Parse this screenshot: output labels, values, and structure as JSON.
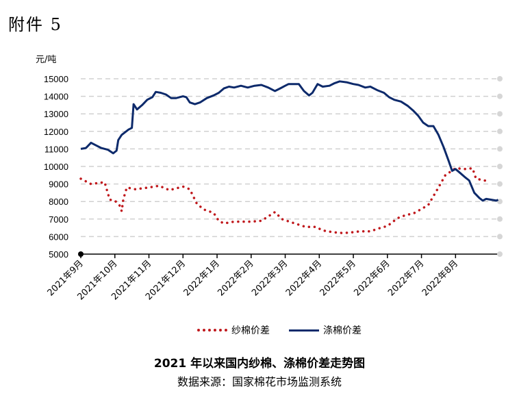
{
  "header": {
    "attachment": "附件 5"
  },
  "chart_data": {
    "type": "line",
    "unit_label": "元/吨",
    "ylim": [
      5000,
      15000
    ],
    "yticks": [
      "5000",
      "6000",
      "7000",
      "8000",
      "9000",
      "10000",
      "11000",
      "12000",
      "13000",
      "14000",
      "15000"
    ],
    "categories": [
      "2021年9月",
      "2021年10月",
      "2021年11月",
      "2021年12月",
      "2022年1月",
      "2022年2月",
      "2022年3月",
      "2022年4月",
      "2022年5月",
      "2022年6月",
      "2022年7月",
      "2022年8月"
    ],
    "grid": true,
    "legend_position": "bottom",
    "series": [
      {
        "name": "纱棉价差",
        "style": "dotted",
        "color": "#c0191d",
        "points": [
          [
            0,
            9300
          ],
          [
            0.15,
            9150
          ],
          [
            0.3,
            9000
          ],
          [
            0.5,
            9050
          ],
          [
            0.7,
            9100
          ],
          [
            0.85,
            8100
          ],
          [
            1.0,
            8050
          ],
          [
            1.15,
            7750
          ],
          [
            1.2,
            7450
          ],
          [
            1.25,
            8150
          ],
          [
            1.35,
            8800
          ],
          [
            1.6,
            8700
          ],
          [
            2.0,
            8800
          ],
          [
            2.3,
            8900
          ],
          [
            2.6,
            8650
          ],
          [
            3.0,
            8850
          ],
          [
            3.2,
            8700
          ],
          [
            3.4,
            7900
          ],
          [
            3.6,
            7550
          ],
          [
            3.9,
            7350
          ],
          [
            4.05,
            6900
          ],
          [
            4.2,
            6750
          ],
          [
            4.5,
            6850
          ],
          [
            5.0,
            6850
          ],
          [
            5.3,
            6900
          ],
          [
            5.5,
            7150
          ],
          [
            5.7,
            7400
          ],
          [
            5.9,
            7000
          ],
          [
            6.2,
            6800
          ],
          [
            6.6,
            6550
          ],
          [
            6.9,
            6550
          ],
          [
            7.1,
            6350
          ],
          [
            7.4,
            6250
          ],
          [
            7.7,
            6200
          ],
          [
            8.0,
            6250
          ],
          [
            8.2,
            6300
          ],
          [
            8.5,
            6300
          ],
          [
            8.8,
            6500
          ],
          [
            9.0,
            6600
          ],
          [
            9.3,
            7050
          ],
          [
            9.5,
            7200
          ],
          [
            9.8,
            7350
          ],
          [
            10.2,
            7800
          ],
          [
            10.5,
            8800
          ],
          [
            10.7,
            9500
          ],
          [
            11.0,
            9900
          ],
          [
            11.3,
            9850
          ],
          [
            11.5,
            9900
          ],
          [
            11.6,
            9300
          ],
          [
            11.85,
            9200
          ],
          [
            12.0,
            9150
          ]
        ]
      },
      {
        "name": "涤棉价差",
        "style": "solid",
        "color": "#0d2a6b",
        "points": [
          [
            0,
            11000
          ],
          [
            0.15,
            11050
          ],
          [
            0.3,
            11350
          ],
          [
            0.45,
            11200
          ],
          [
            0.6,
            11050
          ],
          [
            0.8,
            10950
          ],
          [
            0.95,
            10750
          ],
          [
            1.05,
            10900
          ],
          [
            1.1,
            11500
          ],
          [
            1.2,
            11800
          ],
          [
            1.4,
            12100
          ],
          [
            1.5,
            12200
          ],
          [
            1.55,
            13550
          ],
          [
            1.65,
            13250
          ],
          [
            1.8,
            13500
          ],
          [
            1.95,
            13800
          ],
          [
            2.1,
            13950
          ],
          [
            2.2,
            14250
          ],
          [
            2.35,
            14200
          ],
          [
            2.5,
            14100
          ],
          [
            2.65,
            13900
          ],
          [
            2.8,
            13900
          ],
          [
            3.0,
            14000
          ],
          [
            3.1,
            13950
          ],
          [
            3.2,
            13650
          ],
          [
            3.35,
            13550
          ],
          [
            3.5,
            13650
          ],
          [
            3.7,
            13900
          ],
          [
            3.9,
            14050
          ],
          [
            4.05,
            14200
          ],
          [
            4.2,
            14450
          ],
          [
            4.35,
            14550
          ],
          [
            4.5,
            14500
          ],
          [
            4.7,
            14600
          ],
          [
            4.9,
            14500
          ],
          [
            5.1,
            14600
          ],
          [
            5.3,
            14650
          ],
          [
            5.5,
            14500
          ],
          [
            5.7,
            14300
          ],
          [
            5.85,
            14450
          ],
          [
            6.0,
            14600
          ],
          [
            6.1,
            14700
          ],
          [
            6.25,
            14700
          ],
          [
            6.4,
            14700
          ],
          [
            6.55,
            14300
          ],
          [
            6.7,
            14050
          ],
          [
            6.8,
            14200
          ],
          [
            6.95,
            14700
          ],
          [
            7.1,
            14550
          ],
          [
            7.3,
            14600
          ],
          [
            7.45,
            14750
          ],
          [
            7.6,
            14850
          ],
          [
            7.8,
            14800
          ],
          [
            8.0,
            14700
          ],
          [
            8.15,
            14650
          ],
          [
            8.35,
            14500
          ],
          [
            8.5,
            14550
          ],
          [
            8.7,
            14350
          ],
          [
            8.9,
            14200
          ],
          [
            9.05,
            13950
          ],
          [
            9.2,
            13800
          ],
          [
            9.4,
            13700
          ],
          [
            9.6,
            13450
          ],
          [
            9.75,
            13200
          ],
          [
            9.9,
            12900
          ],
          [
            10.05,
            12500
          ],
          [
            10.2,
            12300
          ],
          [
            10.35,
            12300
          ],
          [
            10.5,
            11800
          ],
          [
            10.65,
            11100
          ],
          [
            10.8,
            10300
          ],
          [
            10.9,
            9750
          ],
          [
            11.0,
            9850
          ],
          [
            11.15,
            9600
          ],
          [
            11.3,
            9350
          ],
          [
            11.4,
            9200
          ],
          [
            11.55,
            8500
          ],
          [
            11.7,
            8200
          ],
          [
            11.8,
            8050
          ],
          [
            11.9,
            8150
          ],
          [
            12.05,
            8100
          ],
          [
            12.2,
            8050
          ],
          [
            12.25,
            8100
          ]
        ]
      }
    ]
  },
  "footer": {
    "title": "2021 年以来国内纱棉、涤棉价差走势图",
    "source": "数据来源：国家棉花市场监测系统"
  }
}
